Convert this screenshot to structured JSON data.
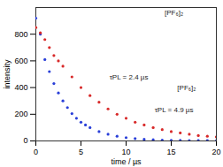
{
  "chart_data": {
    "type": "scatter",
    "x_label": "time / µs",
    "y_label": "intensity",
    "xlim": [
      0,
      20
    ],
    "xticks": [
      0,
      5,
      10,
      15,
      20
    ],
    "ylim": [
      0,
      1000
    ],
    "yticks": [
      0,
      200,
      400,
      600,
      800
    ],
    "series": [
      {
        "name": "τPL = 2.4 µs",
        "color": "#2a3fd8",
        "marker": "circle",
        "x": [
          0,
          0.5,
          1,
          1.5,
          2,
          2.5,
          3,
          3.5,
          4,
          4.5,
          5,
          5.5,
          6,
          7,
          8,
          9,
          10,
          11,
          12,
          13,
          14,
          15,
          16,
          17,
          18,
          19,
          20
        ],
        "values": [
          920,
          800,
          610,
          520,
          430,
          360,
          300,
          250,
          205,
          170,
          140,
          120,
          100,
          70,
          50,
          35,
          25,
          18,
          12,
          9,
          6,
          5,
          4,
          3,
          2,
          2,
          1
        ]
      },
      {
        "name": "τPL = 4.9 µs",
        "color": "#d82a2a",
        "marker": "circle",
        "x": [
          0,
          0.5,
          1,
          1.5,
          2,
          2.5,
          3,
          4,
          5,
          6,
          7,
          8,
          9,
          10,
          11,
          12,
          13,
          14,
          15,
          16,
          17,
          18,
          19,
          20
        ],
        "values": [
          850,
          810,
          760,
          700,
          640,
          600,
          560,
          480,
          400,
          340,
          290,
          240,
          200,
          170,
          140,
          120,
          100,
          85,
          70,
          60,
          50,
          40,
          35,
          30
        ]
      }
    ],
    "annotations": [
      {
        "text": "τPL = 2.4 µs",
        "x": 10.3,
        "y": 475
      },
      {
        "text": "τPL = 4.9 µs",
        "x": 15.3,
        "y": 230
      },
      {
        "text": "[PF₆]₂",
        "x": 15.3,
        "y": 960
      },
      {
        "text": "[PF₆]₂",
        "x": 16.7,
        "y": 400
      }
    ]
  }
}
